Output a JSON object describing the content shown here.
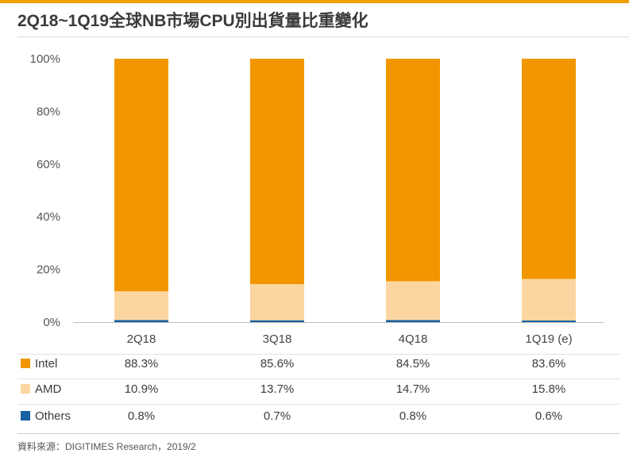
{
  "title": "2Q18~1Q19全球NB市場CPU別出貨量比重變化",
  "source": "資料來源：DIGITIMES Research，2019/2",
  "colors": {
    "intel": "#f29600",
    "amd": "#fcd6a0",
    "others": "#1560a0",
    "accent": "#f0a000"
  },
  "chart_data": {
    "type": "bar",
    "stacked": true,
    "categories": [
      "2Q18",
      "3Q18",
      "4Q18",
      "1Q19 (e)"
    ],
    "series": [
      {
        "name": "Intel",
        "values": [
          88.3,
          85.6,
          84.5,
          83.6
        ],
        "labels": [
          "88.3%",
          "85.6%",
          "84.5%",
          "83.6%"
        ]
      },
      {
        "name": "AMD",
        "values": [
          10.9,
          13.7,
          14.7,
          15.8
        ],
        "labels": [
          "10.9%",
          "13.7%",
          "14.7%",
          "15.8%"
        ]
      },
      {
        "name": "Others",
        "values": [
          0.8,
          0.7,
          0.8,
          0.6
        ],
        "labels": [
          "0.8%",
          "0.7%",
          "0.8%",
          "0.6%"
        ]
      }
    ],
    "yticks": [
      "0%",
      "20%",
      "40%",
      "60%",
      "80%",
      "100%"
    ],
    "ylim": [
      0,
      100
    ],
    "grid": false,
    "legend": "table-below"
  }
}
